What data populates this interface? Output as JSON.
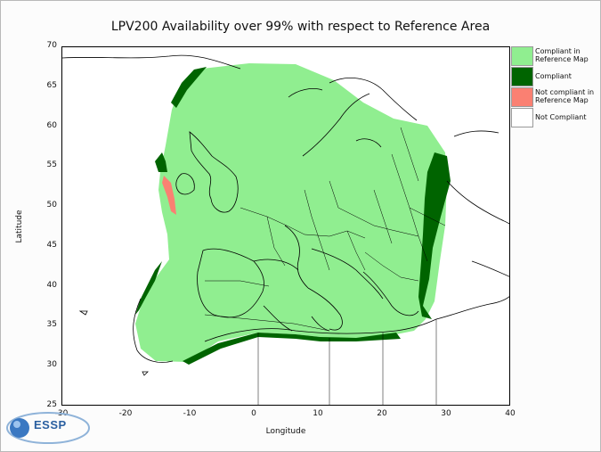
{
  "title": "LPV200 Availability over 99% with respect to Reference Area",
  "axes": {
    "xlabel": "Longitude",
    "ylabel": "Latitude",
    "xticks": [
      "-30",
      "-20",
      "-10",
      "0",
      "10",
      "20",
      "30",
      "40"
    ],
    "yticks": [
      "70",
      "65",
      "60",
      "55",
      "50",
      "45",
      "40",
      "35",
      "30",
      "25"
    ],
    "xlim": [
      -30,
      40
    ],
    "ylim": [
      25,
      70
    ]
  },
  "legend": [
    {
      "label": "Compliant in Reference Map",
      "color": "#90ee90"
    },
    {
      "label": "Compliant",
      "color": "#006400"
    },
    {
      "label": "Not compliant in Reference Map",
      "color": "#fa8072"
    },
    {
      "label": "Not Compliant",
      "color": "#ffffff"
    }
  ],
  "logo": {
    "text": "ESSP"
  }
}
